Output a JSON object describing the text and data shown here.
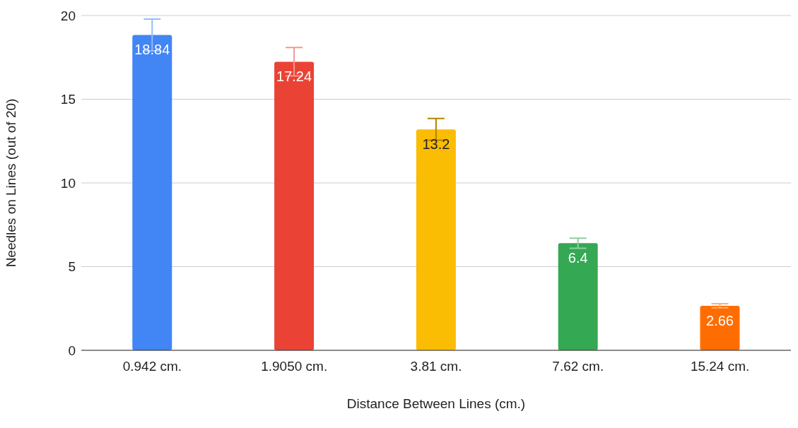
{
  "chart_data": {
    "type": "bar",
    "xlabel": "Distance Between Lines (cm.)",
    "ylabel": "Needles on Lines (out of 20)",
    "categories": [
      "0.942 cm.",
      "1.9050 cm.",
      "3.81 cm.",
      "7.62 cm.",
      "15.24 cm."
    ],
    "values": [
      18.84,
      17.24,
      13.2,
      6.4,
      2.66
    ],
    "colors": [
      "#4285f4",
      "#ea4335",
      "#fbbc04",
      "#34a853",
      "#ff6d01"
    ],
    "errors": [
      0.95,
      0.85,
      0.65,
      0.3,
      0.12
    ],
    "ylim": [
      0,
      20
    ],
    "yticks": [
      0,
      5,
      10,
      15,
      20
    ],
    "grid": "y",
    "legend": false,
    "data_labels": true
  }
}
